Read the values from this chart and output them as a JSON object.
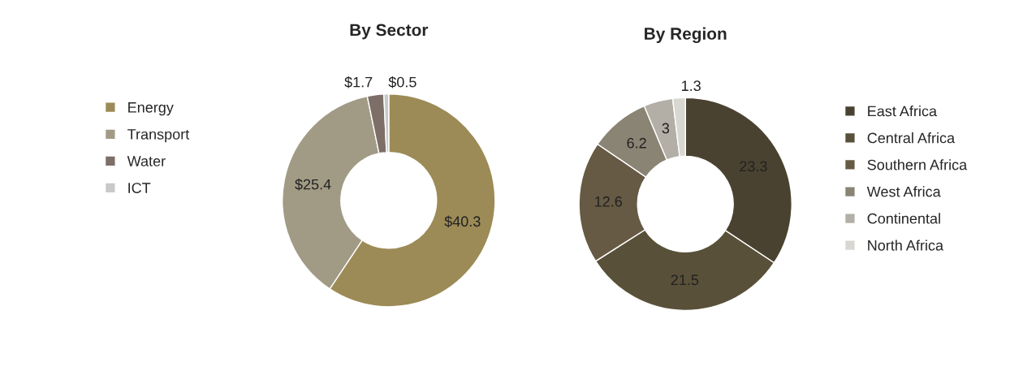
{
  "chart_data": [
    {
      "type": "donut",
      "title": "By Sector",
      "categories": [
        "Energy",
        "Transport",
        "Water",
        "ICT"
      ],
      "values": [
        40.3,
        25.4,
        1.7,
        0.5
      ],
      "colors": [
        "#9c8b56",
        "#a19b86",
        "#7d6e68",
        "#c9c9c9"
      ],
      "value_labels": [
        "$40.3",
        "$25.4",
        "$1.7",
        "$0.5"
      ],
      "legend": "left"
    },
    {
      "type": "donut",
      "title": "By Region",
      "categories": [
        "East Africa",
        "Central Africa",
        "Southern Africa",
        "West Africa",
        "Continental",
        "North Africa"
      ],
      "values": [
        23.3,
        21.5,
        12.6,
        6.2,
        3,
        1.3
      ],
      "colors": [
        "#4a4230",
        "#585038",
        "#665a44",
        "#8a8474",
        "#b3afa6",
        "#d9d7d1"
      ],
      "data_labels": true,
      "legend": "right"
    }
  ]
}
